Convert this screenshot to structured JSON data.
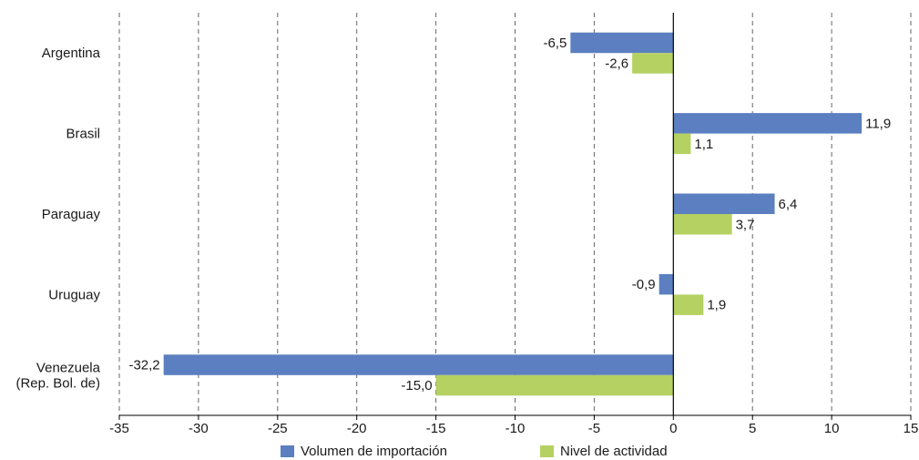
{
  "chart_data": {
    "type": "bar",
    "orientation": "horizontal",
    "categories": [
      [
        "Argentina"
      ],
      [
        "Brasil"
      ],
      [
        "Paraguay"
      ],
      [
        "Uruguay"
      ],
      [
        "Venezuela",
        "(Rep. Bol. de)"
      ]
    ],
    "series": [
      {
        "name": "Volumen de importación",
        "color": "#5b7fc0",
        "values": [
          -6.5,
          11.9,
          6.4,
          -0.9,
          -32.2
        ],
        "labels": [
          "-6,5",
          "11,9",
          "6,4",
          "-0,9",
          "-32,2"
        ]
      },
      {
        "name": "Nivel de actividad",
        "color": "#b5d161",
        "values": [
          -2.6,
          1.1,
          3.7,
          1.9,
          -15.0
        ],
        "labels": [
          "-2,6",
          "1,1",
          "3,7",
          "1,9",
          "-15,0"
        ]
      }
    ],
    "xlim": [
      -35,
      15
    ],
    "xticks": [
      -35,
      -30,
      -25,
      -20,
      -15,
      -10,
      -5,
      0,
      5,
      10,
      15
    ],
    "grid": true,
    "legend_position": "bottom"
  }
}
